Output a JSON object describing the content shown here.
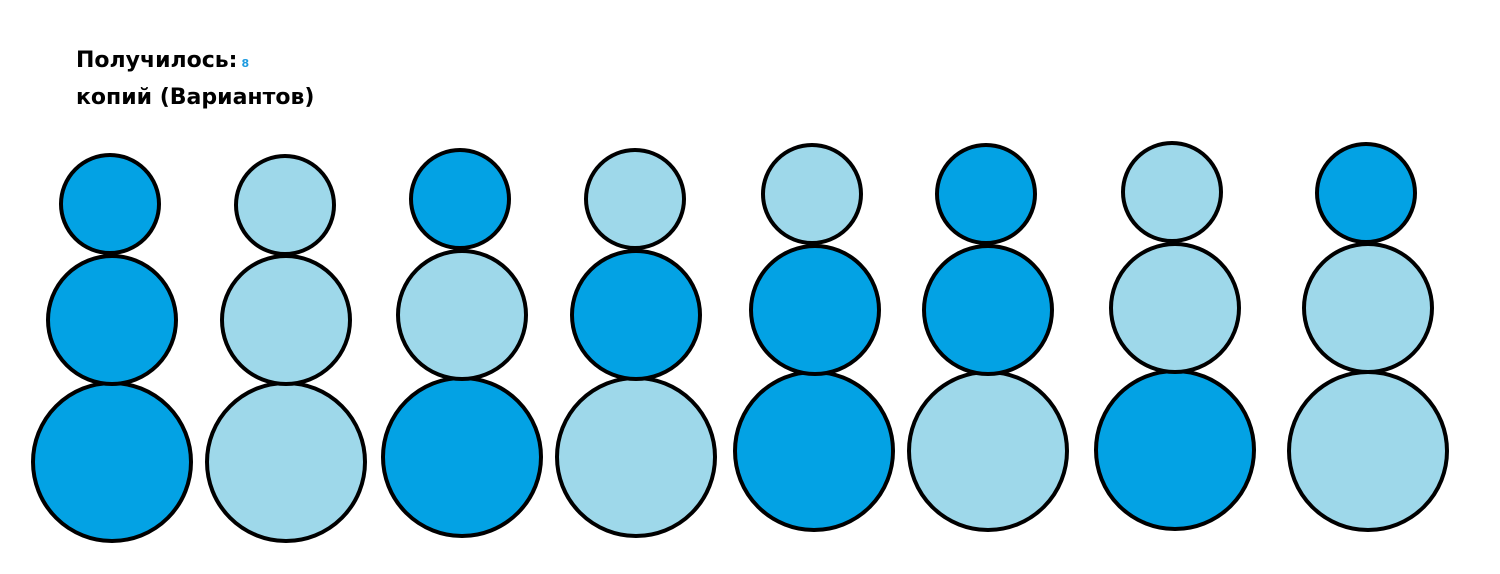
{
  "heading": {
    "label": "Получилось:",
    "count": "8",
    "line2": "копий (Вариантов)"
  },
  "colors": {
    "dark": "#03a2e4",
    "light": "#9ed8ea",
    "outline": "#000000",
    "count_text": "#1e9be0"
  },
  "variants": [
    [
      "dark",
      "dark",
      "dark"
    ],
    [
      "light",
      "light",
      "light"
    ],
    [
      "dark",
      "light",
      "dark"
    ],
    [
      "light",
      "dark",
      "light"
    ],
    [
      "light",
      "dark",
      "dark"
    ],
    [
      "dark",
      "dark",
      "light"
    ],
    [
      "light",
      "light",
      "dark"
    ],
    [
      "dark",
      "light",
      "light"
    ]
  ]
}
